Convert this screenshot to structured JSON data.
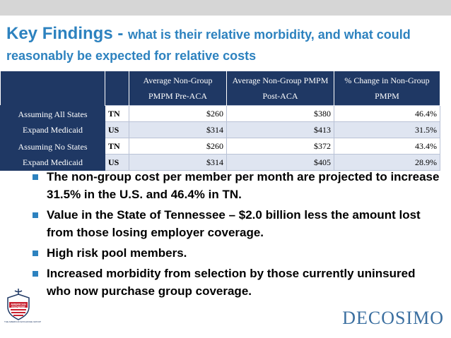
{
  "title": {
    "main": "Key Findings - ",
    "sub": "what is their relative morbidity, and what could reasonably be expected for relative costs"
  },
  "table": {
    "headers": [
      "Average Non-Group PMPM Pre-ACA",
      "Average Non-Group PMPM Post-ACA",
      "% Change in Non-Group PMPM"
    ],
    "groups": [
      {
        "scenario": [
          "Assuming All States",
          "Expand Medicaid"
        ],
        "rows": [
          {
            "region": "TN",
            "pre": "$260",
            "post": "$380",
            "change": "46.4%"
          },
          {
            "region": "US",
            "pre": "$314",
            "post": "$413",
            "change": "31.5%"
          }
        ]
      },
      {
        "scenario": [
          "Assuming No States",
          "Expand Medicaid"
        ],
        "rows": [
          {
            "region": "TN",
            "pre": "$260",
            "post": "$372",
            "change": "43.4%"
          },
          {
            "region": "US",
            "pre": "$314",
            "post": "$405",
            "change": "28.9%"
          }
        ]
      }
    ]
  },
  "bullets": [
    "The non-group cost per member per month are projected to increase 31.5% in the U.S. and 46.4% in TN.",
    "Value in the State of Tennessee – $2.0 billion less the amount lost from those losing employer coverage.",
    "High risk pool members.",
    "Increased morbidity from selection by those currently uninsured who now purchase group coverage."
  ],
  "logos": {
    "left_name": [
      "AMERICAN",
      "EXCHANGE"
    ],
    "left_tagline": "THE AMERICAN EXCHANGE GROUP",
    "right_name": "DECOSIMO"
  },
  "colors": {
    "title": "#2d82bf",
    "header": "#1f3864",
    "stripe": "#dfe5f1",
    "logo": "#3b6fa0"
  }
}
